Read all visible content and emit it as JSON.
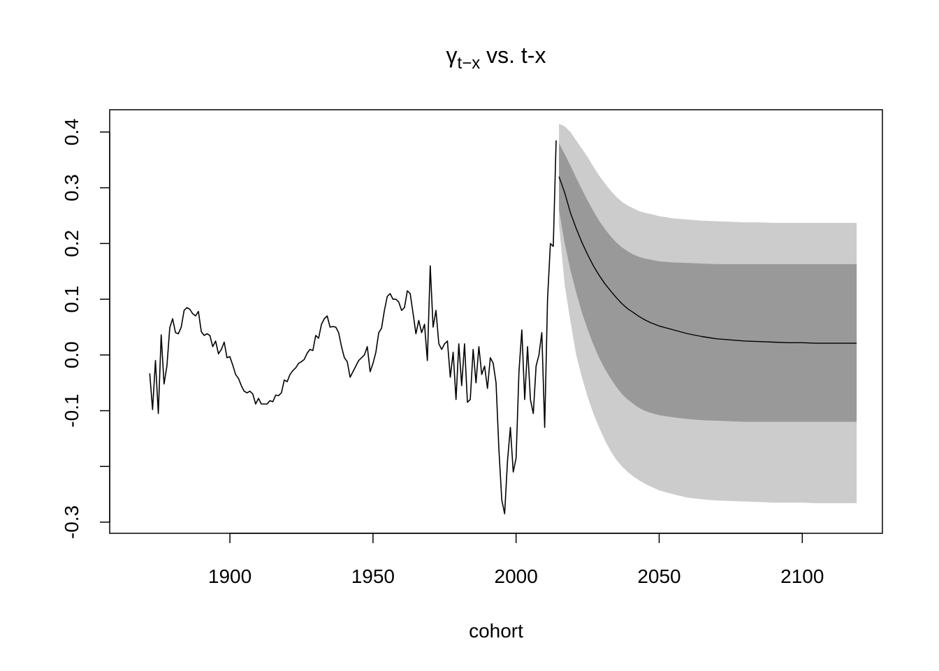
{
  "chart_data": {
    "type": "line",
    "title": {
      "greek": "γ",
      "subscript": "t−x",
      "suffix": " vs. t-x"
    },
    "xlabel": "cohort",
    "ylabel": "",
    "xlim": [
      1858,
      2128
    ],
    "ylim": [
      -0.32,
      0.44
    ],
    "x_ticks": [
      1900,
      1950,
      2000,
      2050,
      2100
    ],
    "x_tick_labels": [
      "1900",
      "1950",
      "2000",
      "2050",
      "2100"
    ],
    "y_ticks": [
      -0.3,
      -0.2,
      -0.1,
      0.0,
      0.1,
      0.2,
      0.3,
      0.4
    ],
    "y_tick_labels": [
      "-0.3",
      "",
      "-0.1",
      "0.0",
      "0.1",
      "0.2",
      "0.3",
      "0.4"
    ],
    "grid": false,
    "colors": {
      "line": "#000000",
      "band_outer": "#cccccc",
      "band_inner": "#999999",
      "frame": "#000000"
    },
    "series": [
      {
        "role": "observed",
        "x": [
          1872,
          1873,
          1874,
          1875,
          1876,
          1877,
          1878,
          1879,
          1880,
          1881,
          1882,
          1883,
          1884,
          1885,
          1886,
          1887,
          1888,
          1889,
          1890,
          1891,
          1892,
          1893,
          1894,
          1895,
          1896,
          1897,
          1898,
          1899,
          1900,
          1901,
          1902,
          1903,
          1904,
          1905,
          1906,
          1907,
          1908,
          1909,
          1910,
          1911,
          1912,
          1913,
          1914,
          1915,
          1916,
          1917,
          1918,
          1919,
          1920,
          1921,
          1922,
          1923,
          1924,
          1925,
          1926,
          1927,
          1928,
          1929,
          1930,
          1931,
          1932,
          1933,
          1934,
          1935,
          1936,
          1937,
          1938,
          1939,
          1940,
          1941,
          1942,
          1943,
          1944,
          1945,
          1946,
          1947,
          1948,
          1949,
          1950,
          1951,
          1952,
          1953,
          1954,
          1955,
          1956,
          1957,
          1958,
          1959,
          1960,
          1961,
          1962,
          1963,
          1964,
          1965,
          1966,
          1967,
          1968,
          1969,
          1970,
          1971,
          1972,
          1973,
          1974,
          1975,
          1976,
          1977,
          1978,
          1979,
          1980,
          1981,
          1982,
          1983,
          1984,
          1985,
          1986,
          1987,
          1988,
          1989,
          1990,
          1991,
          1992,
          1993,
          1994,
          1995,
          1996,
          1997,
          1998,
          1999,
          2000,
          2001,
          2002,
          2003,
          2004,
          2005,
          2006,
          2007,
          2008,
          2009,
          2010,
          2011,
          2012,
          2013,
          2014
        ],
        "y": [
          -0.033,
          -0.098,
          -0.01,
          -0.105,
          0.036,
          -0.052,
          -0.02,
          0.049,
          0.065,
          0.04,
          0.038,
          0.05,
          0.08,
          0.085,
          0.082,
          0.074,
          0.07,
          0.078,
          0.042,
          0.035,
          0.038,
          0.035,
          0.015,
          0.025,
          0.002,
          0.01,
          0.023,
          -0.005,
          -0.003,
          -0.018,
          -0.035,
          -0.042,
          -0.055,
          -0.065,
          -0.068,
          -0.065,
          -0.07,
          -0.088,
          -0.078,
          -0.088,
          -0.088,
          -0.088,
          -0.082,
          -0.084,
          -0.072,
          -0.073,
          -0.068,
          -0.045,
          -0.048,
          -0.035,
          -0.028,
          -0.023,
          -0.015,
          -0.012,
          -0.008,
          0.003,
          0.01,
          0.008,
          0.035,
          0.03,
          0.055,
          0.065,
          0.07,
          0.05,
          0.051,
          0.05,
          0.04,
          0.015,
          -0.005,
          -0.012,
          -0.04,
          -0.03,
          -0.02,
          -0.01,
          -0.005,
          0.0,
          0.015,
          -0.03,
          -0.015,
          0.005,
          0.04,
          0.048,
          0.08,
          0.105,
          0.11,
          0.1,
          0.1,
          0.095,
          0.08,
          0.085,
          0.115,
          0.11,
          0.075,
          0.038,
          0.062,
          0.04,
          0.055,
          -0.01,
          0.16,
          0.05,
          0.08,
          0.02,
          0.01,
          0.02,
          0.025,
          -0.04,
          0.005,
          -0.08,
          0.02,
          -0.055,
          0.02,
          -0.085,
          -0.08,
          0.01,
          -0.05,
          0.015,
          -0.035,
          -0.02,
          -0.06,
          -0.005,
          -0.015,
          -0.05,
          -0.17,
          -0.26,
          -0.285,
          -0.19,
          -0.13,
          -0.21,
          -0.185,
          -0.03,
          0.045,
          -0.08,
          0.015,
          -0.08,
          -0.105,
          -0.02,
          0.0,
          0.04,
          -0.13,
          0.1,
          0.2,
          0.195,
          0.385
        ]
      },
      {
        "role": "forecast_mean",
        "x": [
          2015,
          2017,
          2019,
          2021,
          2023,
          2025,
          2027,
          2029,
          2031,
          2033,
          2035,
          2037,
          2039,
          2041,
          2043,
          2045,
          2047,
          2050,
          2055,
          2060,
          2065,
          2070,
          2075,
          2080,
          2085,
          2090,
          2095,
          2100,
          2105,
          2110,
          2115,
          2119
        ],
        "y": [
          0.32,
          0.291,
          0.255,
          0.227,
          0.202,
          0.18,
          0.16,
          0.143,
          0.128,
          0.115,
          0.103,
          0.092,
          0.083,
          0.076,
          0.069,
          0.063,
          0.058,
          0.052,
          0.045,
          0.038,
          0.033,
          0.029,
          0.027,
          0.025,
          0.024,
          0.023,
          0.022,
          0.022,
          0.021,
          0.021,
          0.021,
          0.021
        ]
      }
    ],
    "bands": [
      {
        "role": "outer_interval",
        "x": [
          2015,
          2017,
          2019,
          2021,
          2023,
          2025,
          2027,
          2029,
          2031,
          2033,
          2035,
          2037,
          2039,
          2041,
          2043,
          2045,
          2047,
          2050,
          2055,
          2060,
          2065,
          2070,
          2075,
          2080,
          2085,
          2090,
          2095,
          2100,
          2105,
          2110,
          2115,
          2119
        ],
        "lower": [
          0.235,
          0.125,
          0.06,
          0.0,
          -0.04,
          -0.075,
          -0.105,
          -0.13,
          -0.153,
          -0.172,
          -0.188,
          -0.2,
          -0.21,
          -0.218,
          -0.225,
          -0.231,
          -0.236,
          -0.243,
          -0.25,
          -0.256,
          -0.259,
          -0.261,
          -0.262,
          -0.263,
          -0.264,
          -0.265,
          -0.265,
          -0.265,
          -0.266,
          -0.266,
          -0.266,
          -0.266
        ],
        "upper": [
          0.415,
          0.41,
          0.4,
          0.385,
          0.37,
          0.355,
          0.338,
          0.322,
          0.308,
          0.295,
          0.284,
          0.275,
          0.268,
          0.263,
          0.258,
          0.255,
          0.253,
          0.249,
          0.245,
          0.243,
          0.241,
          0.24,
          0.239,
          0.238,
          0.238,
          0.237,
          0.237,
          0.237,
          0.237,
          0.237,
          0.237,
          0.237
        ]
      },
      {
        "role": "inner_interval",
        "x": [
          2015,
          2017,
          2019,
          2021,
          2023,
          2025,
          2027,
          2029,
          2031,
          2033,
          2035,
          2037,
          2039,
          2041,
          2043,
          2045,
          2047,
          2050,
          2055,
          2060,
          2065,
          2070,
          2075,
          2080,
          2085,
          2090,
          2095,
          2100,
          2105,
          2110,
          2115,
          2119
        ],
        "lower": [
          0.26,
          0.2,
          0.152,
          0.112,
          0.076,
          0.046,
          0.019,
          -0.005,
          -0.025,
          -0.042,
          -0.057,
          -0.07,
          -0.08,
          -0.088,
          -0.095,
          -0.1,
          -0.104,
          -0.108,
          -0.112,
          -0.115,
          -0.117,
          -0.118,
          -0.119,
          -0.12,
          -0.12,
          -0.12,
          -0.12,
          -0.12,
          -0.12,
          -0.12,
          -0.12,
          -0.12
        ],
        "upper": [
          0.38,
          0.36,
          0.34,
          0.318,
          0.297,
          0.277,
          0.258,
          0.241,
          0.226,
          0.213,
          0.202,
          0.193,
          0.186,
          0.18,
          0.176,
          0.173,
          0.171,
          0.168,
          0.166,
          0.165,
          0.164,
          0.163,
          0.163,
          0.163,
          0.163,
          0.163,
          0.163,
          0.163,
          0.163,
          0.163,
          0.163,
          0.163
        ]
      }
    ]
  }
}
